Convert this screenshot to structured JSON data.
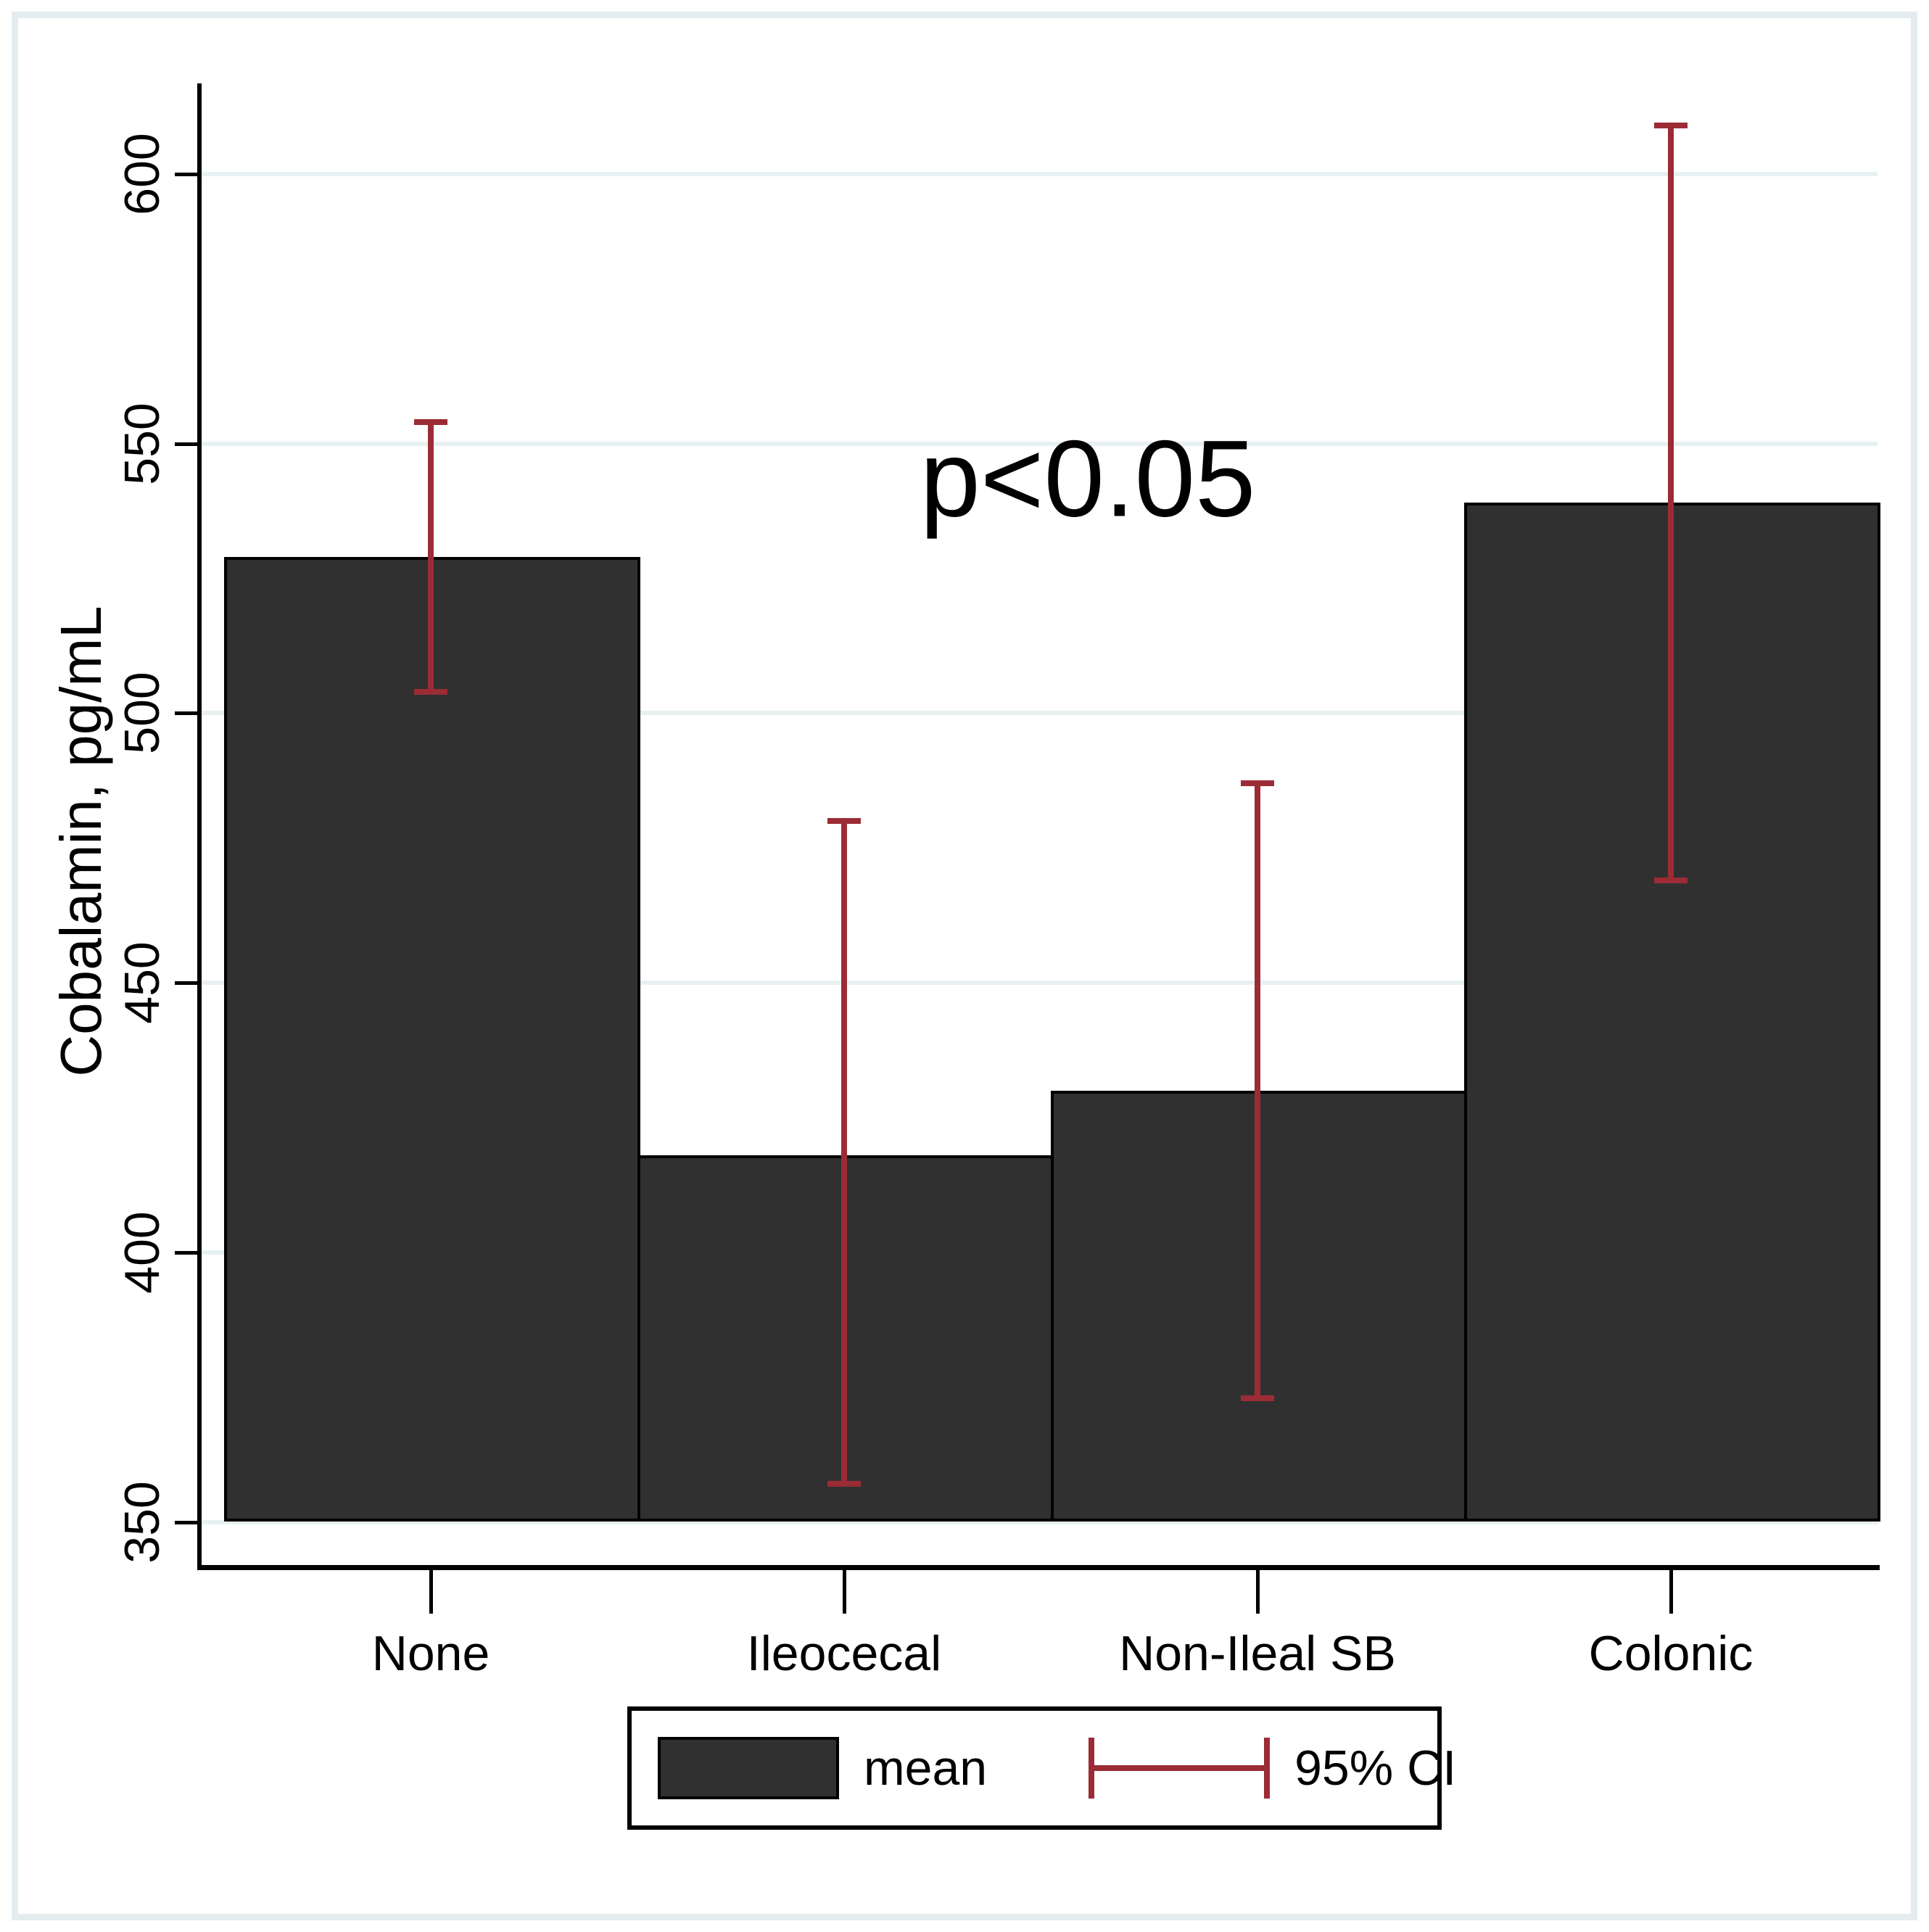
{
  "chart_data": {
    "type": "bar",
    "title": "",
    "categories": [
      "None",
      "Ileocecal",
      "Non-Ileal SB",
      "Colonic"
    ],
    "series": [
      {
        "name": "mean",
        "values": [
          529,
          418,
          430,
          539
        ]
      }
    ],
    "error_bars": {
      "name": "95% CI",
      "low": [
        504,
        357,
        373,
        469
      ],
      "high": [
        554,
        480,
        487,
        609
      ]
    },
    "xlabel": "",
    "ylabel": "Cobalamin, pg/mL",
    "yticks": [
      350,
      400,
      450,
      500,
      550,
      600
    ],
    "ylim": [
      343,
      617
    ],
    "grid": true,
    "legend_position": "bottom",
    "annotation": "p<0.05",
    "colors": {
      "bar_fill": "#303030",
      "bar_outline": "#000000",
      "error_bar": "#9b2c35",
      "gridline": "#e8f1f2",
      "frame": "#e3edf0",
      "text": "#000000"
    }
  },
  "legend": {
    "items": [
      {
        "label": "mean",
        "swatch": "bar"
      },
      {
        "label": "95% CI",
        "swatch": "error-bar"
      }
    ]
  }
}
